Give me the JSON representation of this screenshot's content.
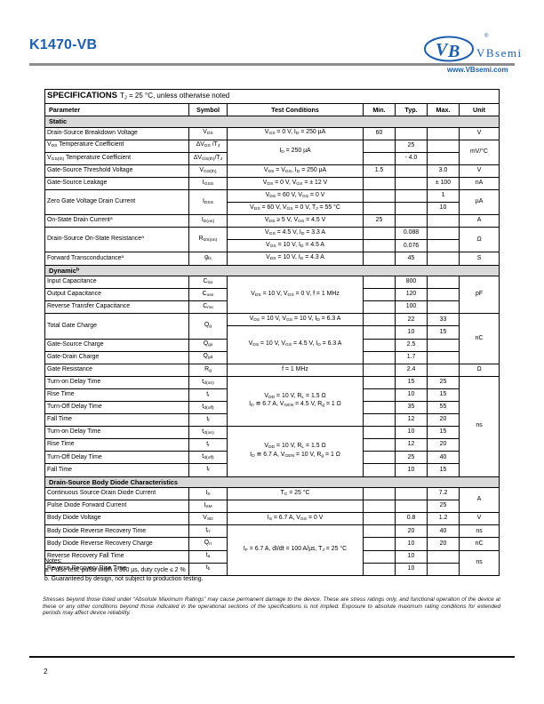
{
  "header": {
    "part_number": "K1470-VB",
    "brand": "VBsemi",
    "brand_reg": "®",
    "logo_monogram": "VB",
    "website": "www.VBsemi.com",
    "accent_color": "#1d5fae"
  },
  "spec": {
    "title": "SPECIFICATIONS",
    "subtitle": "T~J~ = 25 °C, unless otherwise noted",
    "columns": [
      "Parameter",
      "Symbol",
      "Test Conditions",
      "Min.",
      "Typ.",
      "Max.",
      "Unit"
    ],
    "sections": {
      "static": "Static",
      "dynamic": "Dynamic^b^",
      "diode": "Drain-Source Body Diode Characteristics"
    },
    "rows": [
      {
        "p": "Drain-Source Breakdown Voltage",
        "s": "V~DS~",
        "c": "V~GS~ = 0 V, I~D~ = 250 µA",
        "min": "60",
        "u": "V"
      },
      {
        "p": "V~DS~ Temperature Coefficient",
        "s": "ΔV~DS~ /T~J~",
        "c": "I~D~ = 250 µA",
        "typ": "25",
        "u": "mV/°C"
      },
      {
        "p": "V~GS(th)~ Temperature Coefficient",
        "s": "ΔV~GS(th)~/T~J~",
        "typ": "- 4.0"
      },
      {
        "p": "Gate-Source Threshold Voltage",
        "s": "V~GS(th)~",
        "c": "V~DS~ = V~GS~, I~D~ = 250 µA",
        "min": "1.5",
        "max": "3.0",
        "u": "V"
      },
      {
        "p": "Gate-Source Leakage",
        "s": "I~GSS~",
        "c": "V~DS~ = 0 V, V~GS~ = ± 12 V",
        "max": "± 100",
        "u": "nA"
      },
      {
        "p": "Zero Gate Voltage Drain Current",
        "s": "I~DSS~",
        "c": "V~DS~ = 60 V, V~GS~ = 0 V",
        "max": "1",
        "u": "µA"
      },
      {
        "c": "V~DS~ = 60 V, V~GS~ = 0 V, T~J~ = 55 °C",
        "max": "10"
      },
      {
        "p": "On-State Drain Current^a^",
        "s": "I~D(on)~",
        "c": "V~DS~ ≥ 5 V, V~GS~ = 4.5 V",
        "min": "25",
        "u": "A"
      },
      {
        "p": "Drain-Source On-State Resistance^a^",
        "s": "R~DS(on)~",
        "c": "V~GS~ = 4.5 V, I~D~ = 3.3 A",
        "typ": "0.088",
        "u": "Ω"
      },
      {
        "c": "V~GS~ = 10 V, I~D~ = 4.5 A",
        "typ": "0.076"
      },
      {
        "p": "Forward Transconductance^a^",
        "s": "g~fs~",
        "c": "V~DS~ = 10 V, I~D~ = 4.3 A",
        "typ": "45",
        "u": "S"
      },
      {
        "p": "Input Capacitance",
        "s": "C~iss~",
        "c": "V~DS~ = 10 V, V~GS~ = 0 V, f = 1 MHz",
        "typ": "800",
        "u": "pF"
      },
      {
        "p": "Output Capacitance",
        "s": "C~oss~",
        "typ": "120"
      },
      {
        "p": "Reverse Transfer Capacitance",
        "s": "C~rss~",
        "typ": "100"
      },
      {
        "p": "Total Gate Charge",
        "s": "Q~g~",
        "c": "V~DS~ = 10 V, V~GS~ = 10 V, I~D~ = 6.3 A",
        "typ": "22",
        "max": "33",
        "u": "nC"
      },
      {
        "c": "V~DS~ = 10 V, V~GS~ = 4.5 V, I~D~ = 6.3 A",
        "typ": "10",
        "max": "15"
      },
      {
        "p": "Gate-Source Charge",
        "s": "Q~gs~",
        "typ": "2.5"
      },
      {
        "p": "Gate-Drain Charge",
        "s": "Q~gd~",
        "typ": "1.7"
      },
      {
        "p": "Gate Resistance",
        "s": "R~g~",
        "c": "f = 1 MHz",
        "typ": "2.4",
        "u": "Ω"
      },
      {
        "p": "Turn-on Delay Time",
        "s": "t~d(on)~",
        "c": "V~DD~ = 10 V, R~L~ = 1.5 Ω\nI~D~ ≅ 6.7 A, V~GEN~ = 4.5 V, R~g~ = 1 Ω",
        "typ": "15",
        "max": "25",
        "u": "ns"
      },
      {
        "p": "Rise Time",
        "s": "t~r~",
        "typ": "10",
        "max": "15"
      },
      {
        "p": "Turn-Off Delay Time",
        "s": "t~d(off)~",
        "typ": "35",
        "max": "55"
      },
      {
        "p": "Fall Time",
        "s": "t~f~",
        "typ": "12",
        "max": "20"
      },
      {
        "p": "Turn-on Delay Time",
        "s": "t~d(on)~",
        "c": "V~DD~ = 10 V, R~L~ = 1.5 Ω\nI~D~ ≅ 6.7 A, V~GEN~ = 10 V, R~g~ = 1 Ω",
        "typ": "10",
        "max": "15"
      },
      {
        "p": "Rise Time",
        "s": "t~r~",
        "typ": "12",
        "max": "20"
      },
      {
        "p": "Turn-Off Delay Time",
        "s": "t~d(off)~",
        "typ": "25",
        "max": "40"
      },
      {
        "p": "Fall Time",
        "s": "t~f~",
        "typ": "10",
        "max": "15"
      },
      {
        "p": "Continuous Source-Drain Diode Current",
        "s": "I~S~",
        "c": "T~C~ = 25 °C",
        "max": "7.2",
        "u": "A"
      },
      {
        "p": "Pulse Diode Forward Current",
        "s": "I~SM~",
        "max": "25"
      },
      {
        "p": "Body Diode Voltage",
        "s": "V~SD~",
        "c": "I~S~ = 6.7 A, V~GS~ = 0 V",
        "typ": "0.8",
        "max": "1.2",
        "u": "V"
      },
      {
        "p": "Body Diode Reverse Recovery Time",
        "s": "t~rr~",
        "c": "I~F~ = 6.7 A, dI/dt = 100 A/µs, T~J~ = 25 °C",
        "typ": "20",
        "max": "40",
        "u": "ns"
      },
      {
        "p": "Body Diode Reverse Recovery Charge",
        "s": "Q~rr~",
        "typ": "10",
        "max": "20",
        "u": "nC"
      },
      {
        "p": "Reverse Recovery Fall Time",
        "s": "t~a~",
        "typ": "10",
        "u": "ns"
      },
      {
        "p": "Reverse Recovery Rise Time",
        "s": "t~b~",
        "typ": "10"
      }
    ]
  },
  "notes": {
    "title": "Notes:",
    "a": "a. Pulse test; pulse width ≤ 300 µs, duty cycle ≤ 2 %",
    "b": "b. Guaranteed by design, not subject to production testing."
  },
  "disclaimer": "Stresses beyond those listed under “Absolute Maximum Ratings” may cause permanent damage to the device. These are stress ratings only, and functional operation of the device at these or any other conditions beyond those indicated in the operational sections of the specifications is not implied. Exposure to absolute maximum rating conditions for extended periods may affect device reliability.",
  "footer": {
    "page_number": "2"
  }
}
